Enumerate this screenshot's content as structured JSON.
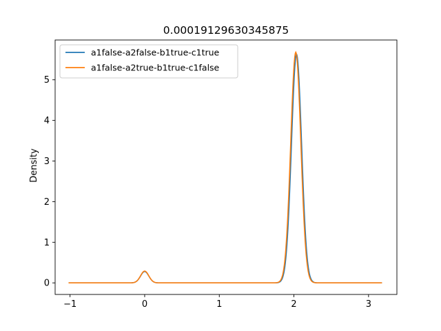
{
  "chart_data": {
    "type": "line",
    "title": "0.00019129630345875",
    "xlabel": "",
    "ylabel": "Density",
    "xlim": [
      -1.2,
      3.38
    ],
    "ylim": [
      -0.285,
      5.98
    ],
    "xticks": [
      -1,
      0,
      1,
      2,
      3
    ],
    "yticks": [
      0,
      1,
      2,
      3,
      4,
      5
    ],
    "legend_position": "upper-left",
    "grid": false,
    "series": [
      {
        "name": "a1false-a2false-b1true-c1true",
        "color": "#1f77b4",
        "peaks": [
          {
            "center": 0.0,
            "height": 0.28,
            "sigma": 0.055
          },
          {
            "center": 2.035,
            "height": 5.63,
            "sigma": 0.068
          }
        ],
        "x_range": [
          -1.02,
          3.18
        ]
      },
      {
        "name": "a1false-a2true-b1true-c1false",
        "color": "#ff7f0e",
        "peaks": [
          {
            "center": 0.0,
            "height": 0.29,
            "sigma": 0.055
          },
          {
            "center": 2.025,
            "height": 5.68,
            "sigma": 0.068
          }
        ],
        "x_range": [
          -1.02,
          3.18
        ]
      }
    ]
  }
}
